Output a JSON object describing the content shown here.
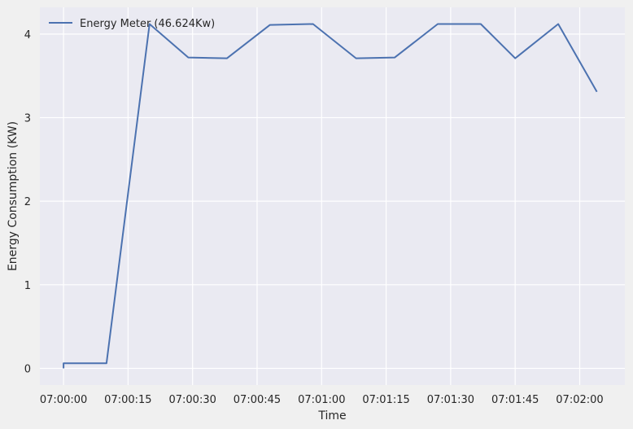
{
  "chart_data": {
    "type": "line",
    "xlabel": "Time",
    "ylabel": "Energy Consumption (KW)",
    "x_tick_labels": [
      "07:00:00",
      "07:00:15",
      "07:00:30",
      "07:00:45",
      "07:01:00",
      "07:01:15",
      "07:01:30",
      "07:01:45",
      "07:02:00"
    ],
    "x_tick_seconds": [
      0,
      15,
      30,
      45,
      60,
      75,
      90,
      105,
      120
    ],
    "y_ticks": [
      0,
      1,
      2,
      3,
      4
    ],
    "xlim": [
      -5.5,
      130.5
    ],
    "ylim": [
      -0.2,
      4.32
    ],
    "grid": true,
    "legend_placement": "top-left",
    "series": [
      {
        "name": "Energy Meter (46.624Kw)",
        "color": "#4c72b0",
        "x": [
          0,
          0,
          10,
          20,
          29,
          38,
          48,
          58,
          68,
          77,
          87,
          97,
          105,
          115,
          124
        ],
        "y": [
          0,
          0.06,
          0.06,
          4.12,
          3.72,
          3.71,
          4.11,
          4.12,
          3.71,
          3.72,
          4.12,
          4.12,
          3.71,
          4.12,
          3.31
        ]
      }
    ]
  }
}
